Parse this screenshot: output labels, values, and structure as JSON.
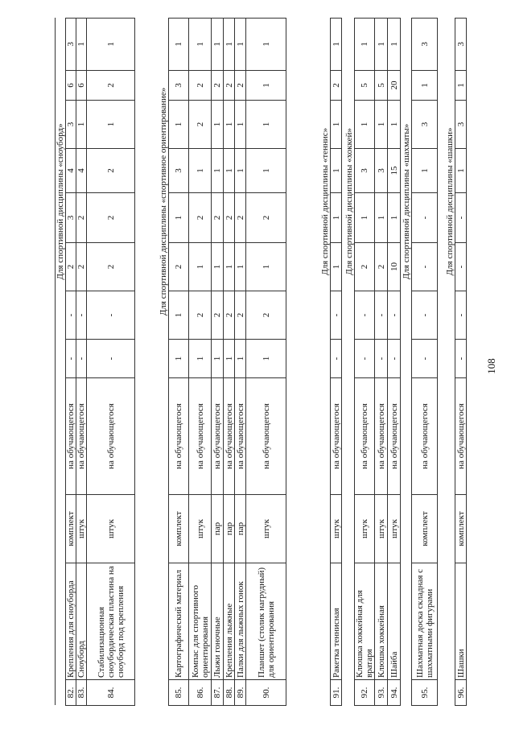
{
  "page_number": "108",
  "sections": [
    {
      "title": "Для спортивной дисциплины «сноуборд»",
      "rows": [
        {
          "num": "82.",
          "name": "Крепления для сноуборда",
          "unit": "комплект",
          "per": "на обучающегося",
          "values": [
            "-",
            "-",
            "2",
            "3",
            "4",
            "3",
            "6",
            "3"
          ]
        },
        {
          "num": "83.",
          "name": "Сноуборд",
          "unit": "штук",
          "per": "на обучающегося",
          "values": [
            "-",
            "-",
            "2",
            "2",
            "4",
            "1",
            "6",
            "1"
          ]
        },
        {
          "num": "84.",
          "name": "Стабилизационная сноубордическая пластина на сноуборд под крепления",
          "unit": "штук",
          "per": "на обучающегося",
          "values": [
            "-",
            "-",
            "2",
            "2",
            "2",
            "1",
            "2",
            "1"
          ]
        }
      ]
    },
    {
      "title": "Для спортивной дисциплины «спортивное ориентирование»",
      "rows": [
        {
          "num": "85.",
          "name": "Картографический материал",
          "unit": "комплект",
          "per": "на обучающегося",
          "values": [
            "1",
            "1",
            "2",
            "1",
            "3",
            "1",
            "3",
            "1"
          ]
        },
        {
          "num": "86.",
          "name": "Компас для спортивного ориентирования",
          "unit": "штук",
          "per": "на обучающегося",
          "values": [
            "1",
            "2",
            "1",
            "2",
            "1",
            "2",
            "2",
            "1"
          ]
        },
        {
          "num": "87.",
          "name": "Лыжи гоночные",
          "unit": "пар",
          "per": "на обучающегося",
          "values": [
            "1",
            "2",
            "1",
            "2",
            "1",
            "1",
            "2",
            "1"
          ]
        },
        {
          "num": "88.",
          "name": "Крепления лыжные",
          "unit": "пар",
          "per": "на обучающегося",
          "values": [
            "1",
            "2",
            "1",
            "2",
            "1",
            "1",
            "2",
            "1"
          ]
        },
        {
          "num": "89.",
          "name": "Палки для лыжных гонок",
          "unit": "пар",
          "per": "на обучающегося",
          "values": [
            "1",
            "2",
            "1",
            "2",
            "1",
            "1",
            "2",
            "1"
          ]
        },
        {
          "num": "90.",
          "name": "Планшет (столик нагрудный) для ориентирования",
          "unit": "штук",
          "per": "на обучающегося",
          "values": [
            "1",
            "2",
            "1",
            "2",
            "1",
            "1",
            "1",
            "1"
          ]
        }
      ]
    },
    {
      "title": "Для спортивной дисциплины «теннис»",
      "rows": [
        {
          "num": "91.",
          "name": "Ракетка теннисная",
          "unit": "штук",
          "per": "на обучающегося",
          "values": [
            "-",
            "-",
            "1",
            "1",
            "1",
            "1",
            "2",
            "1"
          ]
        }
      ]
    },
    {
      "title": "Для спортивной дисциплины «хоккей»",
      "rows": [
        {
          "num": "92.",
          "name": "Клюшка хоккейная для вратаря",
          "unit": "штук",
          "per": "на обучающегося",
          "values": [
            "-",
            "-",
            "2",
            "1",
            "3",
            "1",
            "5",
            "1"
          ]
        },
        {
          "num": "93.",
          "name": "Клюшка хоккейная",
          "unit": "штук",
          "per": "на обучающегося",
          "values": [
            "-",
            "-",
            "2",
            "1",
            "3",
            "1",
            "5",
            "1"
          ]
        },
        {
          "num": "94.",
          "name": "Шайба",
          "unit": "штук",
          "per": "на обучающегося",
          "values": [
            "-",
            "-",
            "10",
            "1",
            "15",
            "1",
            "20",
            "1"
          ]
        }
      ]
    },
    {
      "title": "Для спортивной дисциплины «шахматы»",
      "rows": [
        {
          "num": "95.",
          "name": "Шахматная доска складная с шахматными фигурами",
          "unit": "комплект",
          "per": "на обучающегося",
          "values": [
            "-",
            "-",
            "-",
            "-",
            "1",
            "3",
            "1",
            "3"
          ]
        }
      ]
    },
    {
      "title": "Для спортивной дисциплины «шашки»",
      "rows": [
        {
          "num": "96.",
          "name": "Шашки",
          "unit": "комплект",
          "per": "на обучающегося",
          "values": [
            "-",
            "-",
            "-",
            "-",
            "1",
            "3",
            "1",
            "3"
          ]
        }
      ]
    }
  ]
}
